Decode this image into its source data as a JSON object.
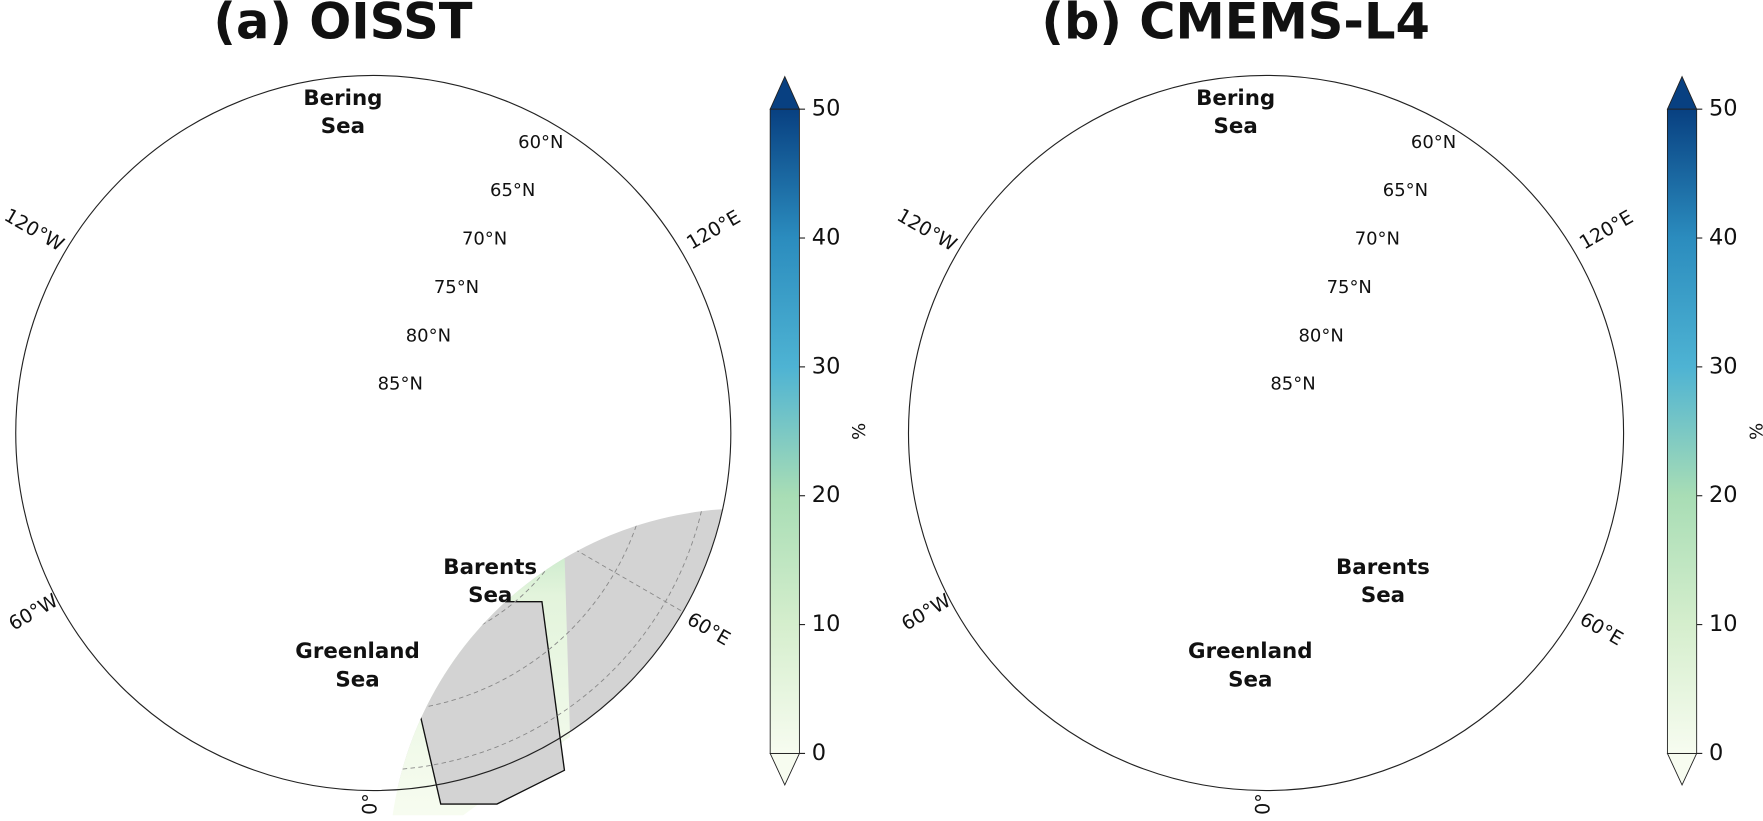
{
  "panels": [
    {
      "title": "(a) OISST",
      "colorbar": {
        "label": "%",
        "lim": [
          0,
          50
        ],
        "ticks": [
          0,
          10,
          20,
          30,
          40,
          50
        ]
      },
      "lat_labels": [
        "85°N",
        "80°N",
        "75°N",
        "70°N",
        "65°N",
        "60°N"
      ],
      "lon_labels": [
        "120°W",
        "120°E",
        "60°W",
        "60°E",
        "0°"
      ],
      "regions": [
        {
          "lines": [
            "Bering",
            "Sea"
          ]
        },
        {
          "lines": [
            "Barents",
            "Sea"
          ]
        },
        {
          "lines": [
            "Greenland",
            "Sea"
          ]
        }
      ]
    },
    {
      "title": "(b) CMEMS-L4",
      "colorbar": {
        "label": "%",
        "lim": [
          0,
          50
        ],
        "ticks": [
          0,
          10,
          20,
          30,
          40,
          50
        ]
      },
      "lat_labels": [
        "85°N",
        "80°N",
        "75°N",
        "70°N",
        "65°N",
        "60°N"
      ],
      "lon_labels": [
        "120°W",
        "120°E",
        "60°W",
        "60°E",
        "0°"
      ],
      "regions": [
        {
          "lines": [
            "Bering",
            "Sea"
          ]
        },
        {
          "lines": [
            "Barents",
            "Sea"
          ]
        },
        {
          "lines": [
            "Greenland",
            "Sea"
          ]
        }
      ]
    }
  ]
}
